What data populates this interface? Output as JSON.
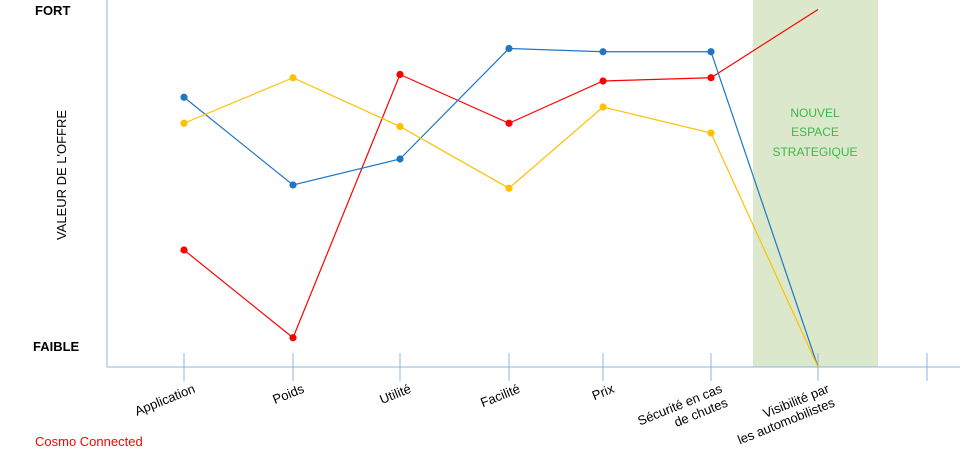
{
  "chart_data": {
    "type": "line",
    "title": "",
    "ylabel": "VALEUR DE L'OFFRE",
    "y_high_label": "FORT",
    "y_low_label": "FAIBLE",
    "ylim": [
      0,
      10
    ],
    "categories": [
      "Application",
      "Poids",
      "Utilité",
      "Facilité",
      "Prix",
      "Sécurité en cas de chutes",
      "Visibilité par les automobilistes"
    ],
    "highlight_zone": {
      "label_lines": [
        "NOUVEL",
        "ESPACE",
        "STRATEGIQUE"
      ],
      "color": "#dbe8cc",
      "text_color": "#3cb84a"
    },
    "series": [
      {
        "name": "Cosmo Connected",
        "color": "#ff0000",
        "values": [
          3.6,
          0.9,
          9.0,
          7.5,
          8.8,
          8.9,
          11.0
        ]
      },
      {
        "name": "",
        "color": "#1f77c4",
        "values": [
          8.3,
          5.6,
          6.4,
          9.8,
          9.7,
          9.7,
          0.0
        ]
      },
      {
        "name": "",
        "color": "#ffc000",
        "values": [
          7.5,
          8.9,
          7.4,
          5.5,
          8.0,
          7.2,
          0.0
        ]
      }
    ]
  }
}
